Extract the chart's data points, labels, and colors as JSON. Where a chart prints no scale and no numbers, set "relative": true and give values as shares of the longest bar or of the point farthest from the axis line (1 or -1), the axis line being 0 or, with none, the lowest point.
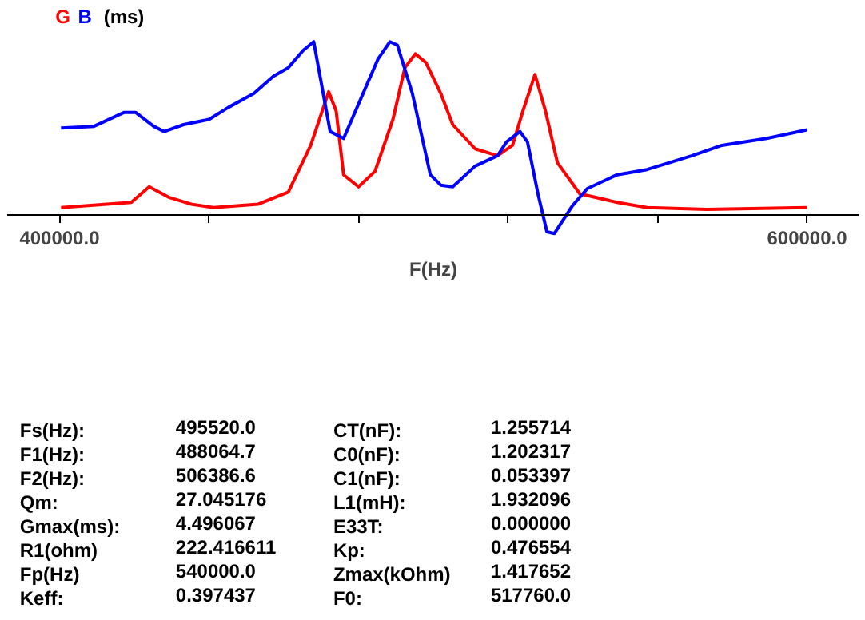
{
  "chart_data": {
    "type": "line",
    "relative": true,
    "ylabel": "(ms)",
    "xlabel": "F(Hz)",
    "xlim": [
      386000,
      614000
    ],
    "xticks": [
      {
        "value": 400000,
        "label": "400000.0"
      },
      {
        "value": 440000,
        "label": null
      },
      {
        "value": 480000,
        "label": null
      },
      {
        "value": 520000,
        "label": null
      },
      {
        "value": 560000,
        "label": null
      },
      {
        "value": 600000,
        "label": "600000.0"
      }
    ],
    "grid": false,
    "line_style": "solid",
    "marker": "none",
    "series": [
      {
        "name": "G",
        "color": "#ff0000",
        "x": [
          400400,
          419200,
          424000,
          429200,
          435200,
          441200,
          453200,
          461200,
          467200,
          472000,
          474000,
          476000,
          480000,
          484400,
          489200,
          492400,
          495200,
          498000,
          502000,
          505200,
          511200,
          517200,
          521200,
          524000,
          527200,
          530000,
          533200,
          539200,
          549200,
          557200,
          573200,
          600000
        ],
        "values": [
          0.04,
          0.07,
          0.16,
          0.1,
          0.06,
          0.04,
          0.06,
          0.13,
          0.4,
          0.71,
          0.6,
          0.23,
          0.16,
          0.25,
          0.55,
          0.85,
          0.93,
          0.88,
          0.7,
          0.52,
          0.38,
          0.34,
          0.4,
          0.6,
          0.81,
          0.6,
          0.3,
          0.12,
          0.07,
          0.04,
          0.03,
          0.04
        ]
      },
      {
        "name": "B",
        "color": "#0000ff",
        "x": [
          400400,
          409200,
          417200,
          420400,
          425200,
          428000,
          433200,
          440000,
          445200,
          452000,
          457200,
          461200,
          465200,
          468000,
          472400,
          476000,
          481200,
          485200,
          488400,
          490400,
          494400,
          499200,
          502000,
          505200,
          511200,
          517200,
          519600,
          523200,
          525200,
          528000,
          530400,
          532400,
          537200,
          541200,
          549200,
          557200,
          569200,
          577200,
          589200,
          600000
        ],
        "values": [
          0.5,
          0.51,
          0.59,
          0.59,
          0.51,
          0.48,
          0.52,
          0.55,
          0.62,
          0.7,
          0.8,
          0.85,
          0.95,
          1.0,
          0.48,
          0.44,
          0.7,
          0.9,
          1.0,
          0.98,
          0.7,
          0.23,
          0.17,
          0.16,
          0.28,
          0.34,
          0.42,
          0.48,
          0.42,
          0.12,
          -0.1,
          -0.11,
          0.05,
          0.15,
          0.23,
          0.26,
          0.34,
          0.4,
          0.44,
          0.49
        ]
      }
    ],
    "annotations": [
      "Fs(Hz):",
      "495520.0",
      "CT(nF):",
      "1.255714",
      "F1(Hz):",
      "488064.7",
      "C0(nF):",
      "1.202317",
      "F2(Hz):",
      "506386.6",
      "C1(nF):",
      "0.053397",
      "Qm:",
      "27.045176",
      "L1(mH):",
      "1.932096",
      "Gmax(ms):",
      "4.496067",
      "E33T:",
      "0.000000",
      "R1(ohm)",
      "222.416611",
      "Kp:",
      "0.476554",
      "Fp(Hz)",
      "540000.0",
      "Zmax(kOhm)",
      "1.417652",
      "Keff:",
      "0.397437",
      "F0:",
      "517760.0"
    ]
  }
}
